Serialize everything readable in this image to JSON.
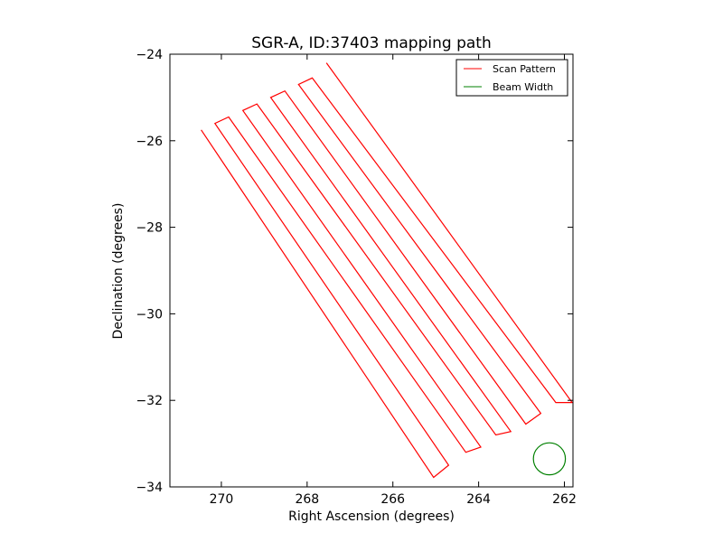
{
  "chart_data": {
    "type": "line",
    "title": "SGR-A, ID:37403 mapping path",
    "xlabel": "Right Ascension (degrees)",
    "ylabel": "Declination (degrees)",
    "xlim": [
      271.2,
      261.8
    ],
    "ylim": [
      -34,
      -24
    ],
    "x_ticks": [
      270,
      268,
      266,
      264,
      262
    ],
    "x_tick_labels": [
      "270",
      "268",
      "266",
      "264",
      "262"
    ],
    "y_ticks": [
      -24,
      -26,
      -28,
      -30,
      -32,
      -34
    ],
    "y_tick_labels": [
      "−24",
      "−26",
      "−28",
      "−30",
      "−32",
      "−34"
    ],
    "grid": false,
    "legend_position": "top-right",
    "series": [
      {
        "name": "Scan Pattern",
        "color": "#ff0000",
        "legs": [
          [
            [
              270.47,
              -25.75
            ],
            [
              265.05,
              -33.78
            ]
          ],
          [
            [
              270.15,
              -25.6
            ],
            [
              264.7,
              -33.5
            ]
          ],
          [
            [
              269.83,
              -25.45
            ],
            [
              264.3,
              -33.2
            ]
          ],
          [
            [
              269.5,
              -25.3
            ],
            [
              263.95,
              -33.08
            ]
          ],
          [
            [
              269.17,
              -25.15
            ],
            [
              263.6,
              -32.8
            ]
          ],
          [
            [
              268.85,
              -25.0
            ],
            [
              263.25,
              -32.72
            ]
          ],
          [
            [
              268.52,
              -24.85
            ],
            [
              262.9,
              -32.55
            ]
          ],
          [
            [
              268.2,
              -24.7
            ],
            [
              262.55,
              -32.3
            ]
          ],
          [
            [
              267.88,
              -24.55
            ],
            [
              262.2,
              -32.05
            ]
          ],
          [
            [
              267.55,
              -24.2
            ],
            [
              261.82,
              -32.05
            ]
          ]
        ]
      },
      {
        "name": "Beam Width",
        "color": "#008000",
        "center": [
          262.35,
          -33.35
        ],
        "radius_deg": 0.37
      }
    ]
  }
}
